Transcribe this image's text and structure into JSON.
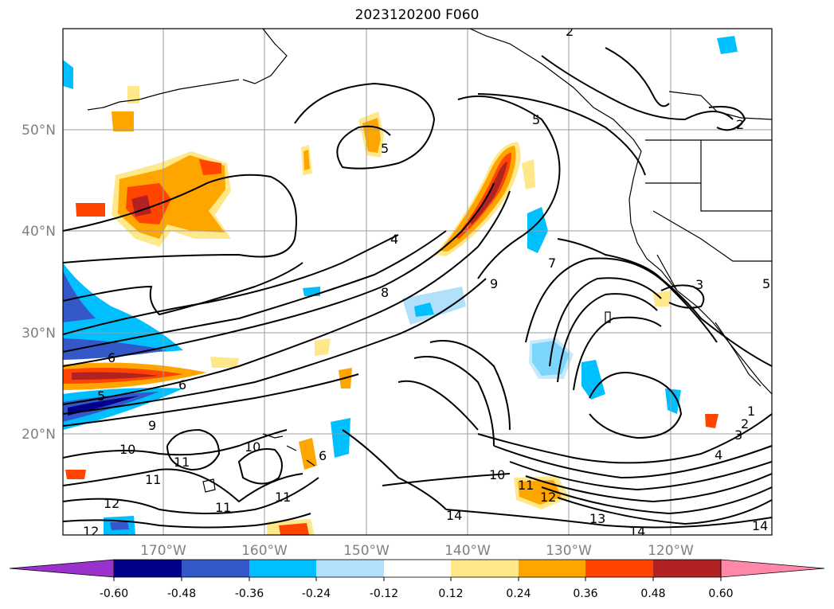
{
  "title": "2023120200 F060",
  "map": {
    "lat_labels": [
      "50°N",
      "40°N",
      "30°N",
      "20°N"
    ],
    "lon_labels": [
      "170°W",
      "160°W",
      "150°W",
      "140°W",
      "130°W",
      "120°W"
    ],
    "contour_labels": [
      "2",
      "2",
      "5",
      "5",
      "4",
      "8",
      "9",
      "7",
      "3",
      "5",
      "6",
      "6",
      "5",
      "9",
      "10",
      "11",
      "11",
      "10",
      "6",
      "11",
      "11",
      "12",
      "12",
      "10",
      "11",
      "12",
      "13",
      "14",
      "14",
      "14",
      "4",
      "3",
      "2",
      "1"
    ],
    "colors": {
      "contour": "#000000",
      "grid": "#9e9e9e",
      "coast": "#000000"
    }
  },
  "colorbar": {
    "ticks": [
      "-0.60",
      "-0.48",
      "-0.36",
      "-0.24",
      "-0.12",
      "0.12",
      "0.24",
      "0.36",
      "0.48",
      "0.60"
    ],
    "bins": [
      {
        "color": "#9932cc"
      },
      {
        "color": "#00008b"
      },
      {
        "color": "#3558c8"
      },
      {
        "color": "#00bfff"
      },
      {
        "color": "#b0e0fa"
      },
      {
        "color": "#ffffff"
      },
      {
        "color": "#ffe88a"
      },
      {
        "color": "#ffa500"
      },
      {
        "color": "#ff4500"
      },
      {
        "color": "#b22222"
      },
      {
        "color": "#ff87a8"
      }
    ]
  }
}
